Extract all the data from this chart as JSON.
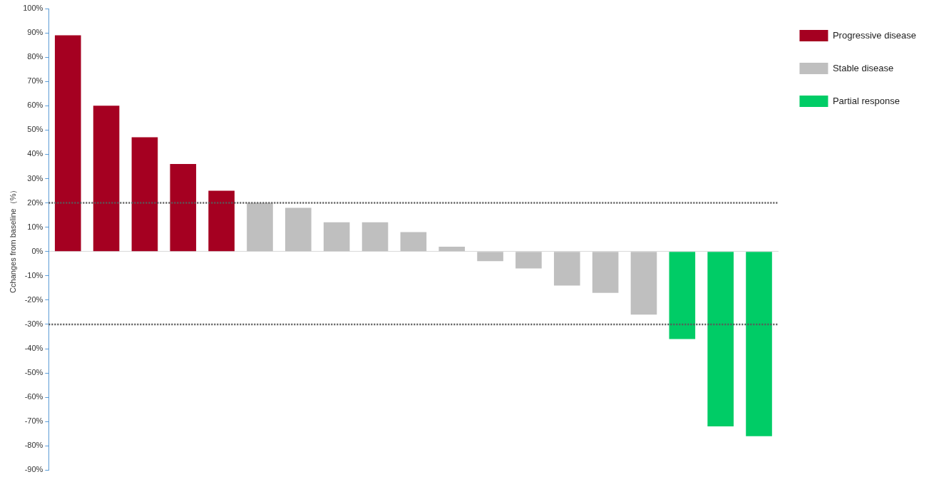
{
  "chart_data": {
    "type": "bar",
    "ylabel": "Cchanges from baseline（%）",
    "categories": [
      null,
      null,
      null,
      null,
      null,
      null,
      null,
      null,
      null,
      null,
      null,
      null,
      null,
      null,
      null,
      null,
      null,
      null,
      null
    ],
    "series": [
      {
        "name": "Progressive disease",
        "color": "#a50021",
        "values": [
          89,
          60,
          47,
          36,
          25,
          null,
          null,
          null,
          null,
          null,
          null,
          null,
          null,
          null,
          null,
          null,
          null,
          null,
          null
        ]
      },
      {
        "name": "Stable disease",
        "color": "#bfbfbf",
        "values": [
          null,
          null,
          null,
          null,
          null,
          20,
          18,
          12,
          12,
          8,
          2,
          -4,
          -7,
          -14,
          -17,
          -26,
          null,
          null,
          null
        ]
      },
      {
        "name": "Partial response",
        "color": "#00cc66",
        "values": [
          null,
          null,
          null,
          null,
          null,
          null,
          null,
          null,
          null,
          null,
          null,
          null,
          null,
          null,
          null,
          null,
          -36,
          -72,
          -76
        ]
      }
    ],
    "ylim": [
      -90,
      100
    ],
    "yticks": [
      {
        "value": 100,
        "label": "100%"
      },
      {
        "value": 90,
        "label": "90%"
      },
      {
        "value": 80,
        "label": "80%"
      },
      {
        "value": 70,
        "label": "70%"
      },
      {
        "value": 60,
        "label": "60%"
      },
      {
        "value": 50,
        "label": "50%"
      },
      {
        "value": 40,
        "label": "40%"
      },
      {
        "value": 30,
        "label": "30%"
      },
      {
        "value": 20,
        "label": "20%"
      },
      {
        "value": 10,
        "label": "10%"
      },
      {
        "value": 0,
        "label": "0%"
      },
      {
        "value": -10,
        "label": "-10%"
      },
      {
        "value": -20,
        "label": "-20%"
      },
      {
        "value": -30,
        "label": "-30%"
      },
      {
        "value": -40,
        "label": "-40%"
      },
      {
        "value": -50,
        "label": "-50%"
      },
      {
        "value": -60,
        "label": "-60%"
      },
      {
        "value": -70,
        "label": "-70%"
      },
      {
        "value": -80,
        "label": "-80%"
      },
      {
        "value": -90,
        "label": "-90%"
      }
    ],
    "ref_lines": [
      {
        "axis": "y",
        "value": 20,
        "color": "#595959",
        "line_style": "dotted"
      },
      {
        "axis": "y",
        "value": -30,
        "color": "#595959",
        "line_style": "dotted"
      }
    ],
    "grid": false,
    "legend": "top right",
    "tick_labels": "y"
  }
}
